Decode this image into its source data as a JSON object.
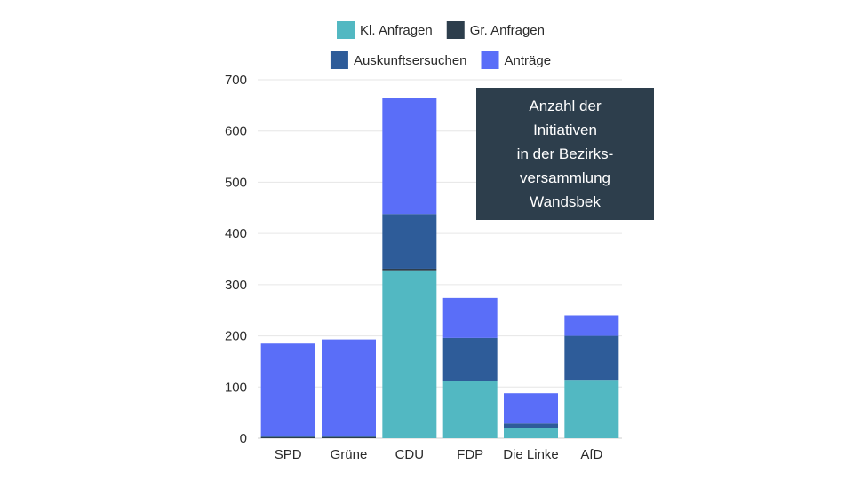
{
  "chart_data": {
    "type": "bar",
    "stacked": true,
    "title": "",
    "xlabel": "",
    "ylabel": "",
    "ylim": [
      0,
      700
    ],
    "yticks": [
      0,
      100,
      200,
      300,
      400,
      500,
      600,
      700
    ],
    "grid": true,
    "legend_position": "top",
    "categories": [
      "SPD",
      "Grüne",
      "CDU",
      "FDP",
      "Die Linke",
      "AfD"
    ],
    "series": [
      {
        "name": "Kl. Anfragen",
        "color": "#52b8c2",
        "values": [
          0,
          0,
          328,
          111,
          20,
          114
        ]
      },
      {
        "name": "Gr. Anfragen",
        "color": "#2d3e4c",
        "values": [
          2,
          2,
          3,
          1,
          0,
          0
        ]
      },
      {
        "name": "Auskunftsersuchen",
        "color": "#2e5c99",
        "values": [
          2,
          3,
          107,
          84,
          9,
          86
        ]
      },
      {
        "name": "Anträge",
        "color": "#5a6ef8",
        "values": [
          181,
          188,
          226,
          78,
          59,
          40
        ]
      }
    ],
    "annotation": [
      "Anzahl der",
      "Initiativen",
      "in der Bezirks-",
      "versammlung",
      "Wandsbek"
    ]
  }
}
